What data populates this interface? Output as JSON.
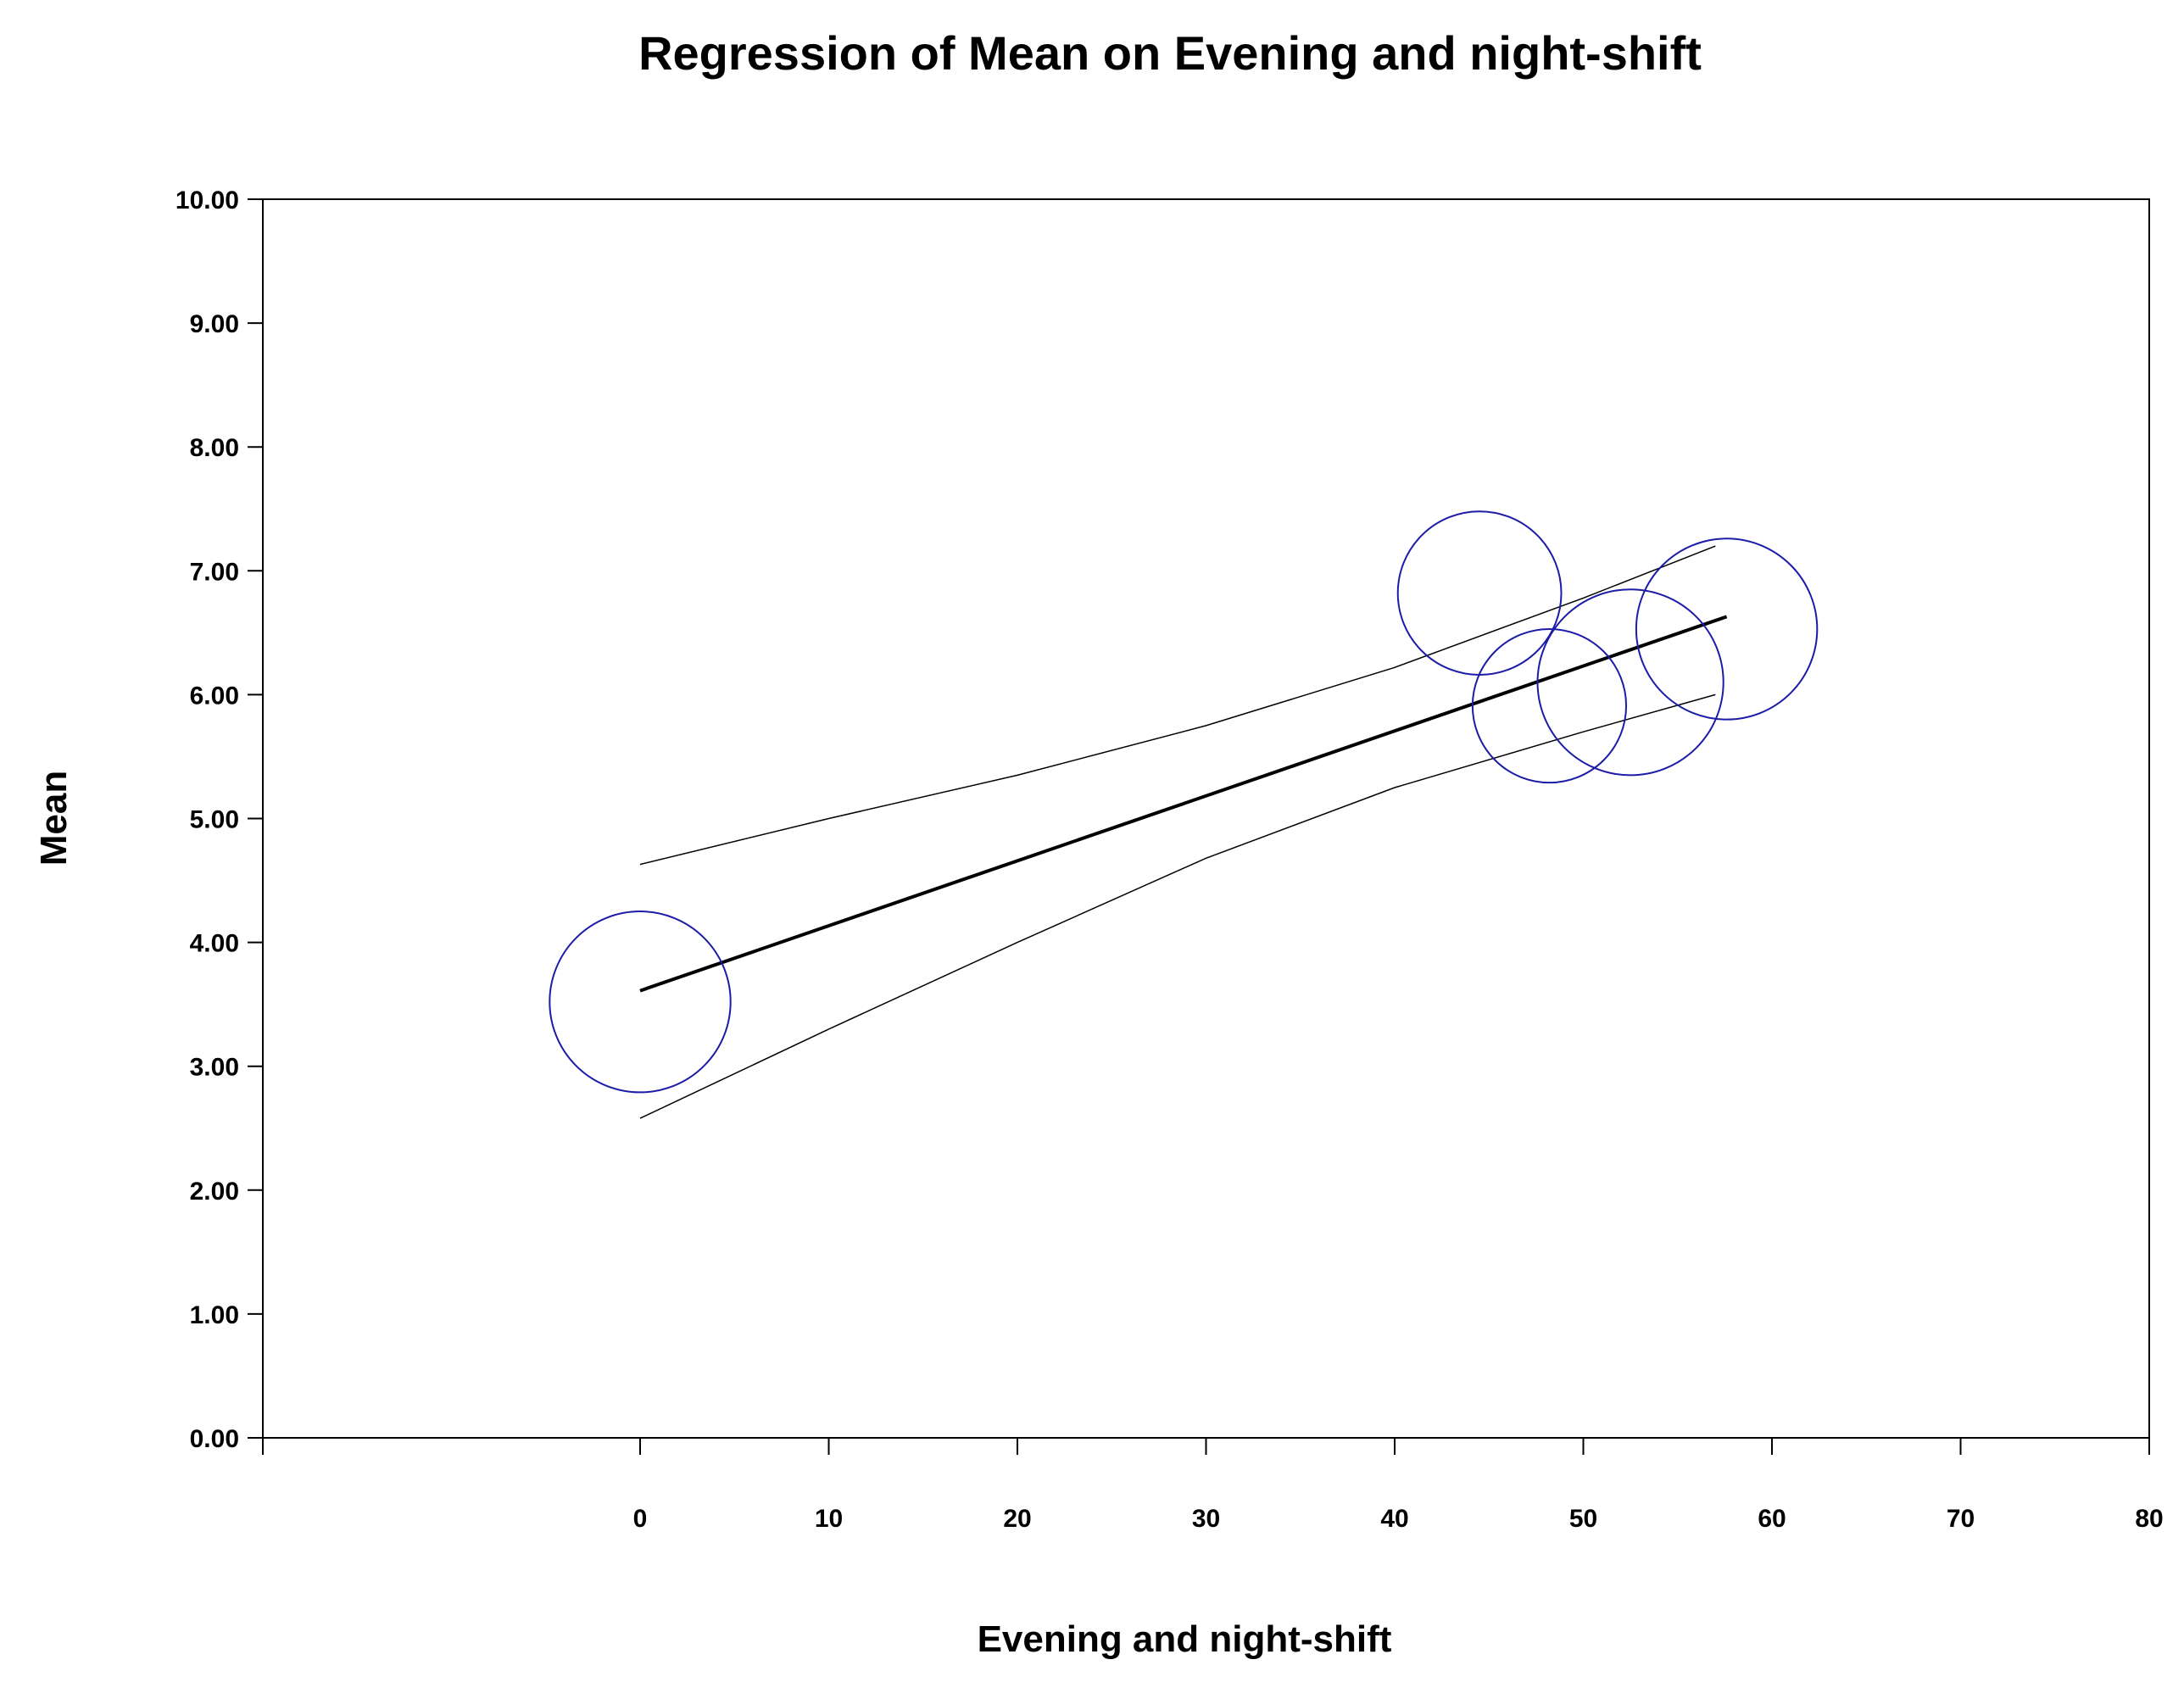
{
  "chart_data": {
    "type": "scatter",
    "title": "Regression of Mean on Evening and night-shift",
    "xlabel": "Evening and night-shift",
    "ylabel": "Mean",
    "xlim": [
      -20,
      80
    ],
    "ylim": [
      0,
      10
    ],
    "x_ticks": [
      0,
      10,
      20,
      30,
      40,
      50,
      60,
      70,
      80
    ],
    "x_tick_labels": [
      "0",
      "10",
      "20",
      "30",
      "40",
      "50",
      "60",
      "70",
      "80"
    ],
    "y_ticks": [
      0,
      1,
      2,
      3,
      4,
      5,
      6,
      7,
      8,
      9,
      10
    ],
    "y_tick_labels": [
      "0.00",
      "1.00",
      "2.00",
      "3.00",
      "4.00",
      "5.00",
      "6.00",
      "7.00",
      "8.00",
      "9.00",
      "10.00"
    ],
    "grid": false,
    "points": [
      {
        "x": 0.0,
        "y": 3.52,
        "size": 0.73
      },
      {
        "x": 44.5,
        "y": 6.82,
        "size": 0.66
      },
      {
        "x": 48.2,
        "y": 5.91,
        "size": 0.62
      },
      {
        "x": 52.5,
        "y": 6.1,
        "size": 0.75
      },
      {
        "x": 57.6,
        "y": 6.53,
        "size": 0.73
      }
    ],
    "regression_line": {
      "x": [
        0,
        57.6
      ],
      "y": [
        3.61,
        6.63
      ]
    },
    "upper_ci": {
      "x": [
        0,
        10,
        20,
        30,
        40,
        50,
        57
      ],
      "y": [
        4.63,
        5.0,
        5.35,
        5.75,
        6.22,
        6.78,
        7.2
      ]
    },
    "lower_ci": {
      "x": [
        0,
        10,
        20,
        30,
        40,
        50,
        57
      ],
      "y": [
        2.58,
        3.3,
        4.0,
        4.68,
        5.25,
        5.7,
        6.0
      ]
    },
    "colors": {
      "points": "#1c1ca8",
      "line": "#000000"
    }
  }
}
